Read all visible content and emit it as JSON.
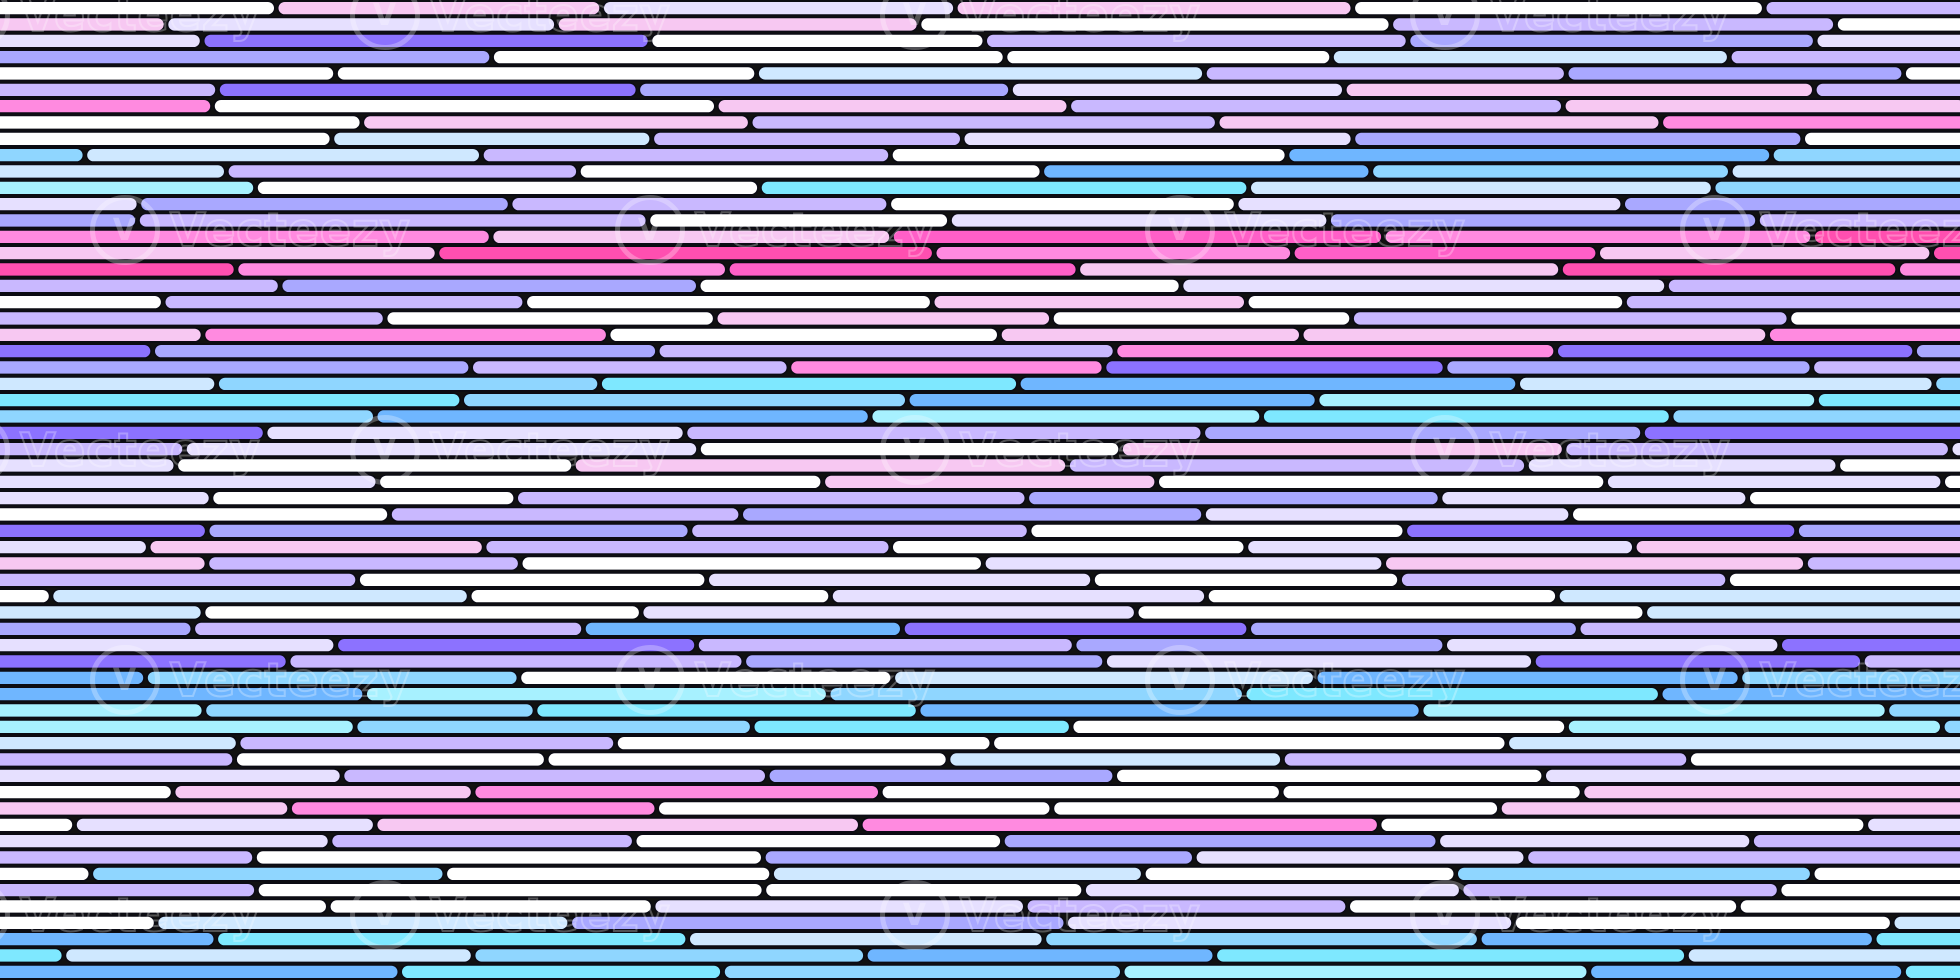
{
  "image": {
    "subject": "pattern of rounded horizontal bars in pink, purple, blue, cyan and white tones",
    "watermark": {
      "text": "Vecteezy",
      "logo_glyph": "V"
    },
    "palette": {
      "white": "#ffffff",
      "pale_lavender": "#e6e0ff",
      "lavender": "#c9b8ff",
      "periwinkle": "#a9a8ff",
      "violet": "#8c72ff",
      "soft_pink": "#f7c8f2",
      "pink": "#ff8ae0",
      "hot_pink": "#ff5fc8",
      "magenta": "#ff4fb0",
      "sky_blue": "#8fd6ff",
      "cyan": "#7ee8ff",
      "aqua": "#a7f1ff",
      "blue": "#6fb6ff",
      "pale_blue": "#cfe8ff",
      "outline": "#0b0b14"
    }
  }
}
